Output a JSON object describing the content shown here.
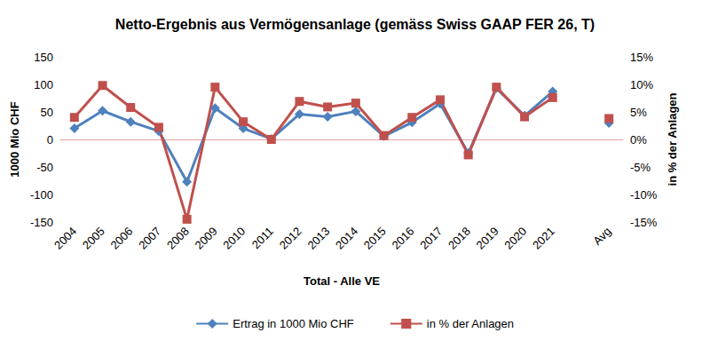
{
  "chart_data": {
    "type": "line",
    "title": "Netto-Ergebnis aus Vermögensanlage (gemäss Swiss GAAP FER 26, T)",
    "xlabel": "Total - Alle VE",
    "ylabel": "1000 Mio CHF",
    "y2label": "in % der Anlagen",
    "categories": [
      "2004",
      "2005",
      "2006",
      "2007",
      "2008",
      "2009",
      "2010",
      "2011",
      "2012",
      "2013",
      "2014",
      "2015",
      "2016",
      "2017",
      "2018",
      "2019",
      "2020",
      "2021",
      null,
      "Avg"
    ],
    "series": [
      {
        "name": "Ertrag in 1000 Mio CHF",
        "color": "#4f81bd",
        "marker": "diamond",
        "values": [
          20,
          52,
          32,
          15,
          -77,
          57,
          20,
          1,
          46,
          41,
          51,
          6,
          31,
          65,
          -25,
          93,
          43,
          87,
          null,
          30
        ]
      },
      {
        "name": "in % der Anlagen",
        "color": "#c0504d",
        "marker": "square",
        "axis": "y2",
        "values": [
          4.0,
          9.8,
          5.8,
          2.2,
          -14.5,
          9.5,
          3.2,
          0.0,
          6.9,
          5.9,
          6.6,
          0.7,
          4.0,
          7.2,
          -2.8,
          9.5,
          4.1,
          7.6,
          null,
          3.8
        ]
      }
    ],
    "ylim": [
      -150,
      150
    ],
    "yticks": [
      -150,
      -100,
      -50,
      0,
      50,
      100,
      150
    ],
    "y2lim": [
      -15,
      15
    ],
    "y2ticks": [
      {
        "value": -15,
        "label": "-15%"
      },
      {
        "value": -10,
        "label": "-10%"
      },
      {
        "value": -5,
        "label": "-5%"
      },
      {
        "value": 0,
        "label": "0%"
      },
      {
        "value": 5,
        "label": "5%"
      },
      {
        "value": 10,
        "label": "10%"
      },
      {
        "value": 15,
        "label": "15%"
      }
    ],
    "grid": false,
    "legend": "bottom"
  }
}
